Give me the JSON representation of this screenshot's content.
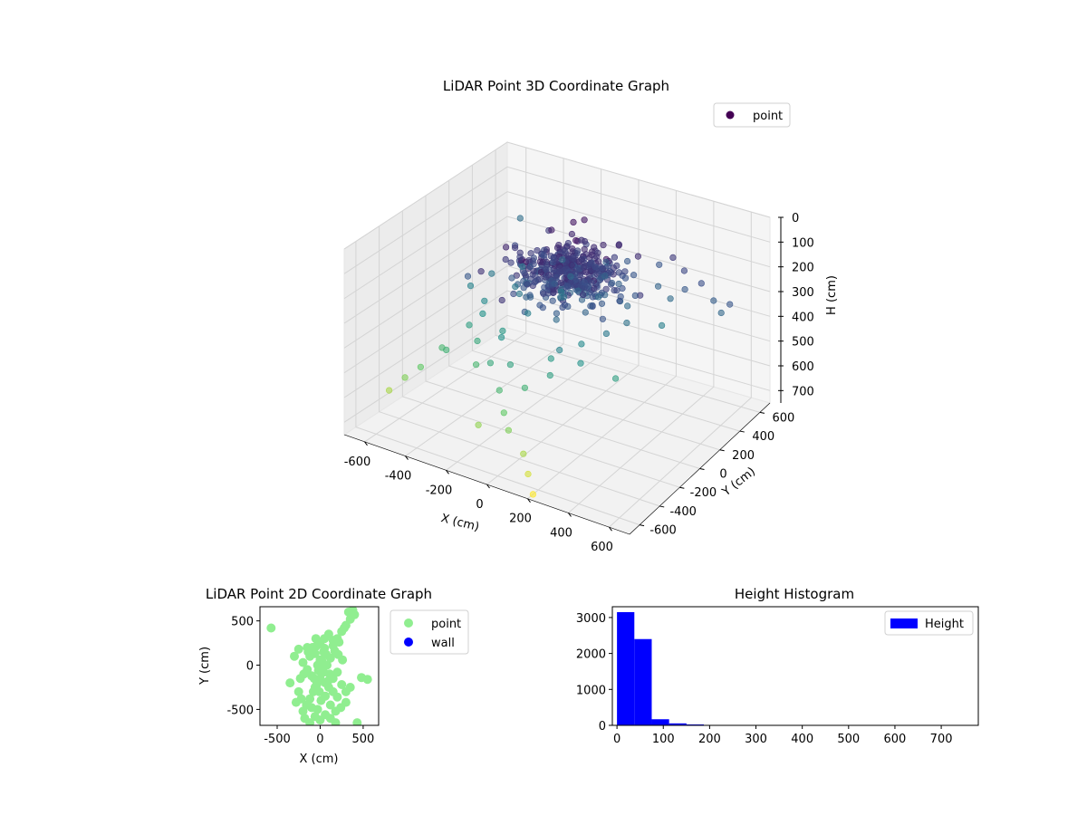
{
  "chart_data": [
    {
      "type": "scatter3d",
      "title": "LiDAR Point 3D Coordinate Graph",
      "xlabel": "X (cm)",
      "ylabel": "Y (cm)",
      "zlabel": "H (cm)",
      "xlim": [
        -700,
        700
      ],
      "ylim": [
        -700,
        700
      ],
      "zlim": [
        750,
        0
      ],
      "xticks": [
        -600,
        -400,
        -200,
        0,
        200,
        400,
        600
      ],
      "yticks": [
        -600,
        -400,
        -200,
        0,
        200,
        400,
        600
      ],
      "zticks": [
        0,
        100,
        200,
        300,
        400,
        500,
        600,
        700
      ],
      "colormap": "viridis",
      "legend": {
        "position": "top-right",
        "entries": [
          {
            "label": "point",
            "color": "#440154"
          }
        ]
      },
      "cluster": {
        "center": [
          0,
          50,
          150
        ],
        "spread": [
          120,
          120,
          40
        ],
        "count": 420
      },
      "points": [
        [
          -600,
          650,
          270
        ],
        [
          50,
          -150,
          260
        ],
        [
          120,
          -250,
          330
        ],
        [
          -120,
          200,
          310
        ],
        [
          350,
          400,
          130
        ],
        [
          420,
          380,
          160
        ],
        [
          520,
          360,
          180
        ],
        [
          600,
          330,
          220
        ],
        [
          650,
          310,
          250
        ],
        [
          700,
          300,
          200
        ],
        [
          300,
          350,
          240
        ],
        [
          380,
          320,
          260
        ],
        [
          450,
          330,
          210
        ],
        [
          -300,
          100,
          300
        ],
        [
          -380,
          -50,
          380
        ],
        [
          -420,
          -100,
          420
        ],
        [
          -500,
          -200,
          500
        ],
        [
          -550,
          -300,
          560
        ],
        [
          -600,
          -350,
          600
        ],
        [
          -650,
          -400,
          650
        ],
        [
          -250,
          -100,
          400
        ],
        [
          -200,
          -300,
          450
        ],
        [
          -100,
          -400,
          500
        ],
        [
          -50,
          -450,
          560
        ],
        [
          0,
          -500,
          600
        ],
        [
          100,
          -550,
          650
        ],
        [
          150,
          -600,
          700
        ],
        [
          200,
          -650,
          750
        ],
        [
          -150,
          -500,
          620
        ],
        [
          50,
          -200,
          400
        ],
        [
          150,
          -100,
          350
        ],
        [
          250,
          -50,
          300
        ],
        [
          300,
          50,
          280
        ],
        [
          200,
          300,
          200
        ],
        [
          -350,
          -150,
          450
        ],
        [
          -200,
          -200,
          380
        ],
        [
          -150,
          -50,
          320
        ],
        [
          -50,
          100,
          280
        ],
        [
          100,
          150,
          260
        ],
        [
          150,
          250,
          230
        ],
        [
          -300,
          -250,
          500
        ],
        [
          -400,
          0,
          350
        ],
        [
          -250,
          50,
          300
        ],
        [
          -100,
          -300,
          430
        ],
        [
          0,
          -350,
          480
        ],
        [
          100,
          -300,
          420
        ],
        [
          200,
          -200,
          380
        ],
        [
          350,
          -150,
          420
        ],
        [
          400,
          200,
          320
        ],
        [
          -450,
          150,
          300
        ],
        [
          -350,
          250,
          280
        ],
        [
          -200,
          350,
          250
        ],
        [
          0,
          400,
          230
        ],
        [
          100,
          420,
          210
        ],
        [
          250,
          450,
          200
        ],
        [
          -500,
          50,
          330
        ],
        [
          -450,
          -250,
          480
        ],
        [
          -100,
          250,
          260
        ],
        [
          50,
          300,
          240
        ],
        [
          250,
          150,
          260
        ]
      ]
    },
    {
      "type": "scatter",
      "title": "LiDAR Point 2D Coordinate Graph",
      "xlabel": "X (cm)",
      "ylabel": "Y (cm)",
      "xlim": [
        -700,
        680
      ],
      "ylim": [
        -680,
        660
      ],
      "xticks": [
        -500,
        0,
        500
      ],
      "yticks": [
        -500,
        0,
        500
      ],
      "legend": {
        "position": "outside-right",
        "entries": [
          {
            "label": "point",
            "color": "#90ee90"
          },
          {
            "label": "wall",
            "color": "#0000ff"
          }
        ]
      },
      "series": [
        {
          "name": "point",
          "color": "#90ee90",
          "points": [
            [
              -570,
              420
            ],
            [
              -250,
              180
            ],
            [
              -150,
              200
            ],
            [
              -50,
              210
            ],
            [
              50,
              190
            ],
            [
              150,
              220
            ],
            [
              200,
              300
            ],
            [
              250,
              380
            ],
            [
              300,
              450
            ],
            [
              350,
              520
            ],
            [
              380,
              620
            ],
            [
              400,
              570
            ],
            [
              330,
              600
            ],
            [
              280,
              420
            ],
            [
              220,
              260
            ],
            [
              170,
              160
            ],
            [
              120,
              80
            ],
            [
              80,
              0
            ],
            [
              40,
              -80
            ],
            [
              0,
              -150
            ],
            [
              -40,
              -220
            ],
            [
              -80,
              -300
            ],
            [
              -120,
              -380
            ],
            [
              -160,
              -450
            ],
            [
              -200,
              -520
            ],
            [
              -180,
              -600
            ],
            [
              -120,
              -650
            ],
            [
              -60,
              -580
            ],
            [
              0,
              -620
            ],
            [
              60,
              -560
            ],
            [
              120,
              -600
            ],
            [
              180,
              -520
            ],
            [
              240,
              -480
            ],
            [
              300,
              -420
            ],
            [
              200,
              -360
            ],
            [
              150,
              -300
            ],
            [
              100,
              -250
            ],
            [
              60,
              -200
            ],
            [
              -100,
              -120
            ],
            [
              -150,
              -50
            ],
            [
              -200,
              30
            ],
            [
              -120,
              100
            ],
            [
              -60,
              130
            ],
            [
              0,
              60
            ],
            [
              30,
              -30
            ],
            [
              -30,
              0
            ],
            [
              20,
              50
            ],
            [
              -20,
              -60
            ],
            [
              70,
              120
            ],
            [
              -70,
              -150
            ],
            [
              150,
              -150
            ],
            [
              200,
              -80
            ],
            [
              250,
              -220
            ],
            [
              -250,
              -300
            ],
            [
              -220,
              -380
            ],
            [
              -280,
              -420
            ],
            [
              430,
              -650
            ],
            [
              480,
              -140
            ],
            [
              550,
              -160
            ],
            [
              100,
              350
            ],
            [
              150,
              280
            ],
            [
              -50,
              300
            ],
            [
              0,
              250
            ],
            [
              50,
              300
            ],
            [
              -300,
              100
            ],
            [
              -350,
              -200
            ],
            [
              300,
              -300
            ],
            [
              350,
              -250
            ],
            [
              120,
              -450
            ],
            [
              -100,
              -480
            ],
            [
              10,
              -400
            ],
            [
              60,
              -350
            ],
            [
              -10,
              -300
            ],
            [
              -60,
              -250
            ],
            [
              90,
              -180
            ],
            [
              -90,
              200
            ],
            [
              40,
              150
            ],
            [
              -140,
              150
            ],
            [
              210,
              120
            ],
            [
              260,
              60
            ],
            [
              -230,
              -150
            ],
            [
              180,
              -650
            ],
            [
              -30,
              -500
            ],
            [
              110,
              -100
            ],
            [
              -190,
              -100
            ]
          ]
        },
        {
          "name": "wall",
          "color": "#0000ff",
          "points": []
        }
      ]
    },
    {
      "type": "bar",
      "title": "Height Histogram",
      "xlim": [
        -10,
        780
      ],
      "ylim": [
        0,
        3300
      ],
      "xticks": [
        0,
        100,
        200,
        300,
        400,
        500,
        600,
        700
      ],
      "yticks": [
        0,
        1000,
        2000,
        3000
      ],
      "legend": {
        "position": "top-right",
        "entries": [
          {
            "label": "Height",
            "color": "#0000ff"
          }
        ]
      },
      "bin_width": 37.5,
      "bins": [
        0,
        37.5,
        75,
        112.5,
        150,
        187.5,
        225,
        262.5,
        300,
        337.5,
        375,
        412.5,
        450,
        487.5,
        525,
        562.5,
        600,
        637.5,
        675,
        712.5
      ],
      "values": [
        3150,
        2400,
        170,
        55,
        25,
        10,
        5,
        3,
        2,
        2,
        1,
        1,
        1,
        1,
        1,
        1,
        1,
        1,
        1,
        1
      ]
    }
  ]
}
